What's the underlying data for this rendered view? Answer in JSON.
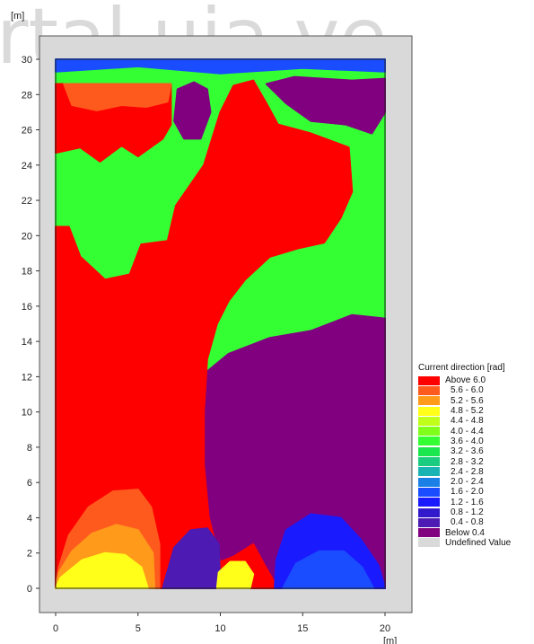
{
  "watermark": "rtal.uia.ve",
  "chart_data": {
    "type": "heatmap",
    "title": "",
    "xunit": "[m]",
    "yunit": "[m]",
    "xlim": [
      -0.5,
      20.5
    ],
    "ylim": [
      -1,
      30.5
    ],
    "xticks": [
      0,
      5,
      10,
      15,
      20
    ],
    "yticks": [
      0,
      2,
      4,
      6,
      8,
      10,
      12,
      14,
      16,
      18,
      20,
      22,
      24,
      26,
      28,
      30
    ],
    "field_extent": {
      "x": [
        0,
        20
      ],
      "y": [
        0,
        30
      ]
    },
    "legend": {
      "title": "Current direction [rad]",
      "placement": "right",
      "entries": [
        {
          "label": "Above 6.0",
          "color": "#ff0000"
        },
        {
          "label": "5.6 - 6.0",
          "color": "#ff5a1e"
        },
        {
          "label": "5.2 - 5.6",
          "color": "#ff9a1a"
        },
        {
          "label": "4.8 - 5.2",
          "color": "#ffff1a"
        },
        {
          "label": "4.4 - 4.8",
          "color": "#bfff1a"
        },
        {
          "label": "4.0 - 4.4",
          "color": "#80ff1a"
        },
        {
          "label": "3.6 - 4.0",
          "color": "#33ff33"
        },
        {
          "label": "3.2 - 3.6",
          "color": "#1ae64d"
        },
        {
          "label": "2.8 - 3.2",
          "color": "#1acc80"
        },
        {
          "label": "2.4 - 2.8",
          "color": "#1ab3b3"
        },
        {
          "label": "2.0 - 2.4",
          "color": "#1a80e6"
        },
        {
          "label": "1.6 - 2.0",
          "color": "#1a4dff"
        },
        {
          "label": "1.2 - 1.6",
          "color": "#1a1aff"
        },
        {
          "label": "0.8 - 1.2",
          "color": "#3319cc"
        },
        {
          "label": "0.4 - 0.8",
          "color": "#4d1ab3"
        },
        {
          "label": "Below 0.4",
          "color": "#800080"
        },
        {
          "label": "Undefined Value",
          "color": "#d9d9d9"
        }
      ]
    },
    "regions": [
      {
        "name": "green-background",
        "color": "#33ff33",
        "points": [
          [
            0,
            0
          ],
          [
            20,
            0
          ],
          [
            20,
            30
          ],
          [
            0,
            30
          ]
        ]
      },
      {
        "name": "blue-top-band",
        "color": "#1a4dff",
        "points": [
          [
            0,
            30
          ],
          [
            20,
            30
          ],
          [
            20,
            29.3
          ],
          [
            15,
            29.5
          ],
          [
            10,
            29.2
          ],
          [
            5,
            29.6
          ],
          [
            0,
            29.3
          ]
        ]
      },
      {
        "name": "purple-lower-right",
        "color": "#800080",
        "points": [
          [
            9.5,
            0
          ],
          [
            20,
            0
          ],
          [
            20,
            15.3
          ],
          [
            18,
            15.5
          ],
          [
            15.5,
            14.6
          ],
          [
            13,
            14.2
          ],
          [
            10.5,
            13.3
          ],
          [
            9.2,
            12.3
          ],
          [
            9,
            10
          ],
          [
            9,
            6
          ],
          [
            9.1,
            2.5
          ]
        ]
      },
      {
        "name": "red-top-left",
        "color": "#ff0000",
        "points": [
          [
            0,
            28.6
          ],
          [
            7,
            28.6
          ],
          [
            7,
            26.3
          ],
          [
            6.5,
            25.5
          ],
          [
            5,
            24.5
          ],
          [
            4,
            25.1
          ],
          [
            2.7,
            24.2
          ],
          [
            1.5,
            25
          ],
          [
            0,
            24.7
          ]
        ]
      },
      {
        "name": "orange-top-left",
        "color": "#ff5a1e",
        "points": [
          [
            0.5,
            28.6
          ],
          [
            7,
            28.6
          ],
          [
            6.8,
            27.6
          ],
          [
            5.5,
            27.3
          ],
          [
            4,
            27.4
          ],
          [
            2.5,
            27.1
          ],
          [
            1,
            27.4
          ]
        ]
      },
      {
        "name": "purple-top-center",
        "color": "#800080",
        "points": [
          [
            7.2,
            26.5
          ],
          [
            7.4,
            28.3
          ],
          [
            8.4,
            28.7
          ],
          [
            9.2,
            28.3
          ],
          [
            9.4,
            27
          ],
          [
            8.8,
            25.5
          ],
          [
            7.8,
            25.5
          ]
        ]
      },
      {
        "name": "purple-top-right",
        "color": "#800080",
        "points": [
          [
            12.8,
            28.6
          ],
          [
            14.5,
            29
          ],
          [
            18,
            28.8
          ],
          [
            20,
            28.9
          ],
          [
            20,
            27
          ],
          [
            19.2,
            25.8
          ],
          [
            17.6,
            26.3
          ],
          [
            15.5,
            26.5
          ],
          [
            14,
            27.5
          ]
        ]
      },
      {
        "name": "red-main-body",
        "color": "#ff0000",
        "points": [
          [
            0,
            20.5
          ],
          [
            0.8,
            20.5
          ],
          [
            1.5,
            18.8
          ],
          [
            3,
            17.5
          ],
          [
            4.5,
            17.8
          ],
          [
            5.2,
            19.5
          ],
          [
            6.8,
            19.7
          ],
          [
            7.3,
            21.7
          ],
          [
            9,
            24
          ],
          [
            10,
            27
          ],
          [
            10.8,
            28.5
          ],
          [
            12,
            28.8
          ],
          [
            12.8,
            27.5
          ],
          [
            13.5,
            26.3
          ],
          [
            15.5,
            25.8
          ],
          [
            17.8,
            25
          ],
          [
            18,
            22.5
          ],
          [
            17.3,
            21
          ],
          [
            16.3,
            19.6
          ],
          [
            14.8,
            19.3
          ],
          [
            13,
            18.8
          ],
          [
            11.5,
            17.5
          ],
          [
            10.5,
            16.3
          ],
          [
            9.8,
            15
          ],
          [
            9.2,
            13
          ],
          [
            9,
            10
          ],
          [
            9,
            7
          ],
          [
            9.3,
            4
          ],
          [
            10,
            1.5
          ],
          [
            10.8,
            1.8
          ],
          [
            12,
            2.5
          ],
          [
            12.7,
            1.3
          ],
          [
            13.5,
            0
          ],
          [
            0,
            0
          ]
        ]
      },
      {
        "name": "purple-bottom-center",
        "color": "#4d1ab3",
        "points": [
          [
            6.5,
            0
          ],
          [
            10,
            0
          ],
          [
            9.9,
            2.5
          ],
          [
            9.2,
            3.4
          ],
          [
            8.2,
            3.3
          ],
          [
            7.2,
            2.3
          ]
        ]
      },
      {
        "name": "orange-bottom-left",
        "color": "#ff5a1e",
        "points": [
          [
            0,
            0
          ],
          [
            6.3,
            0
          ],
          [
            6.3,
            2.5
          ],
          [
            5.8,
            4.6
          ],
          [
            5,
            5.6
          ],
          [
            3.5,
            5.5
          ],
          [
            2,
            4.6
          ],
          [
            0.8,
            3
          ],
          [
            0.2,
            1.2
          ]
        ]
      },
      {
        "name": "lightorange-bottom-left",
        "color": "#ff9a1a",
        "points": [
          [
            0,
            0
          ],
          [
            6,
            0
          ],
          [
            5.9,
            2
          ],
          [
            5,
            3.3
          ],
          [
            3.7,
            3.6
          ],
          [
            2.2,
            3.1
          ],
          [
            1,
            2.1
          ],
          [
            0.2,
            0.9
          ]
        ]
      },
      {
        "name": "yellow-bottom-left",
        "color": "#ffff1a",
        "points": [
          [
            0,
            0
          ],
          [
            5.6,
            0
          ],
          [
            5.2,
            1.2
          ],
          [
            4.2,
            1.9
          ],
          [
            3,
            2
          ],
          [
            1.6,
            1.6
          ],
          [
            0.3,
            0.6
          ]
        ]
      },
      {
        "name": "yellow-bottom-center",
        "color": "#ffff1a",
        "points": [
          [
            9.8,
            0
          ],
          [
            11.8,
            0
          ],
          [
            12,
            0.8
          ],
          [
            11.5,
            1.5
          ],
          [
            10.6,
            1.5
          ],
          [
            9.9,
            0.9
          ]
        ]
      },
      {
        "name": "blue-bottom-right",
        "color": "#1a1aff",
        "points": [
          [
            13.3,
            0
          ],
          [
            20,
            0
          ],
          [
            19.6,
            1.3
          ],
          [
            18.5,
            2.8
          ],
          [
            17.3,
            4
          ],
          [
            15.5,
            4.2
          ],
          [
            14,
            3.3
          ],
          [
            13.4,
            1.6
          ]
        ]
      },
      {
        "name": "darkblue-bottom-right",
        "color": "#1a4dff",
        "points": [
          [
            13.8,
            0
          ],
          [
            19.3,
            0
          ],
          [
            18.6,
            1.2
          ],
          [
            17.5,
            2.1
          ],
          [
            16,
            2.1
          ],
          [
            14.6,
            1.4
          ]
        ]
      }
    ]
  }
}
